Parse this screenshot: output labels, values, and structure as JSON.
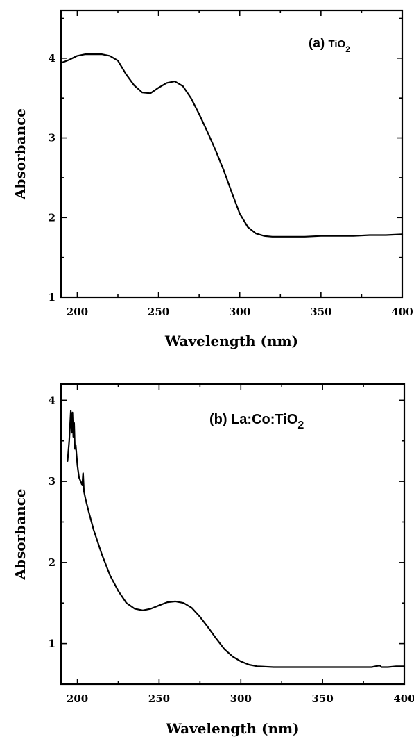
{
  "chart_data": [
    {
      "type": "line",
      "panel_label": "(a)",
      "annotation": "TiO",
      "annotation_subscript": "2",
      "xlabel": "Wavelength (nm)",
      "ylabel": "Absorbance",
      "xlim": [
        190,
        400
      ],
      "ylim": [
        1,
        4.6
      ],
      "x_ticks": [
        200,
        250,
        300,
        350,
        400
      ],
      "y_ticks": [
        1,
        2,
        3,
        4
      ],
      "grid": false,
      "x": [
        190,
        195,
        200,
        205,
        210,
        215,
        220,
        225,
        230,
        235,
        240,
        245,
        250,
        255,
        260,
        265,
        270,
        275,
        280,
        285,
        290,
        295,
        300,
        305,
        310,
        315,
        320,
        330,
        340,
        350,
        360,
        370,
        380,
        390,
        400
      ],
      "y": [
        3.94,
        3.98,
        4.03,
        4.05,
        4.05,
        4.05,
        4.03,
        3.97,
        3.8,
        3.66,
        3.57,
        3.56,
        3.63,
        3.69,
        3.71,
        3.65,
        3.5,
        3.3,
        3.08,
        2.85,
        2.6,
        2.32,
        2.05,
        1.88,
        1.8,
        1.77,
        1.76,
        1.76,
        1.76,
        1.77,
        1.77,
        1.77,
        1.78,
        1.78,
        1.79
      ]
    },
    {
      "type": "line",
      "panel_label": "(b)",
      "annotation": "La:Co:TiO",
      "annotation_subscript": "2",
      "xlabel": "Wavelength (nm)",
      "ylabel": "Absorbance",
      "xlim": [
        190,
        400
      ],
      "ylim": [
        0.5,
        4.2
      ],
      "x_ticks": [
        200,
        250,
        300,
        350,
        400
      ],
      "y_ticks": [
        1,
        2,
        3,
        4
      ],
      "grid": false,
      "x": [
        194,
        195,
        196,
        196.5,
        197,
        197.5,
        198,
        198.5,
        199,
        200,
        201,
        202,
        203,
        203.5,
        204,
        205,
        207,
        210,
        215,
        220,
        225,
        230,
        235,
        240,
        245,
        250,
        255,
        260,
        265,
        270,
        275,
        280,
        285,
        290,
        295,
        300,
        305,
        310,
        320,
        330,
        340,
        350,
        360,
        370,
        380,
        385,
        386,
        390,
        395,
        400
      ],
      "y": [
        3.25,
        3.5,
        3.87,
        3.6,
        3.85,
        3.55,
        3.72,
        3.4,
        3.45,
        3.2,
        3.05,
        3.0,
        2.95,
        3.1,
        2.88,
        2.78,
        2.62,
        2.4,
        2.1,
        1.84,
        1.65,
        1.5,
        1.43,
        1.41,
        1.43,
        1.47,
        1.51,
        1.52,
        1.5,
        1.44,
        1.33,
        1.2,
        1.06,
        0.93,
        0.84,
        0.78,
        0.74,
        0.72,
        0.71,
        0.71,
        0.71,
        0.71,
        0.71,
        0.71,
        0.71,
        0.73,
        0.71,
        0.71,
        0.72,
        0.72
      ]
    }
  ]
}
